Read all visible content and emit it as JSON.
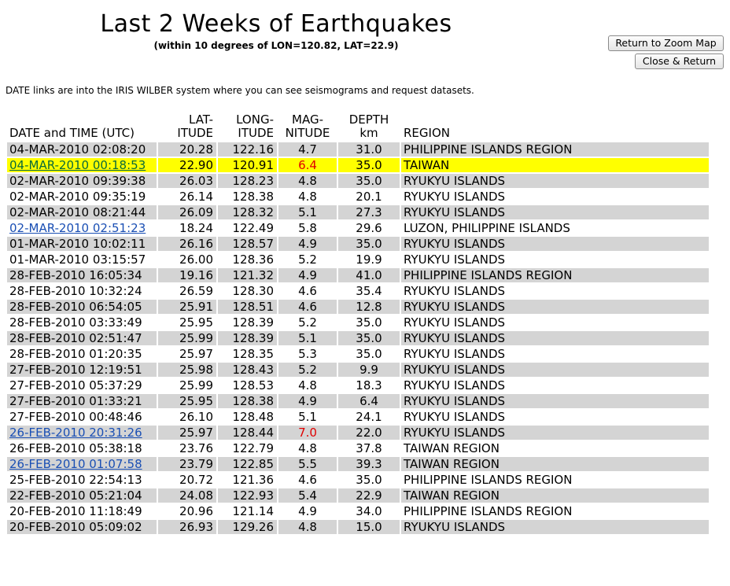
{
  "header": {
    "title": "Last 2 Weeks of Earthquakes",
    "subtitle": "(within 10 degrees of LON=120.82, LAT=22.9)"
  },
  "buttons": {
    "zoom_label": "Return to Zoom Map",
    "close_label": "Close & Return"
  },
  "note": "DATE links are into the IRIS WILBER system where you can see seismograms and request datasets.",
  "columns": {
    "date": "DATE and TIME (UTC)",
    "lat": [
      "LAT-",
      "ITUDE"
    ],
    "lon": [
      "LONG-",
      "ITUDE"
    ],
    "mag": [
      "MAG-",
      "NITUDE"
    ],
    "depth": [
      "DEPTH",
      "km"
    ],
    "region": "REGION"
  },
  "highlight_color": "#ffff00",
  "alert_color": "#e00000",
  "rows": [
    {
      "date": "04-MAR-2010 02:08:20",
      "lat": "20.28",
      "lon": "122.16",
      "mag": "4.7",
      "depth": "31.0",
      "region": "PHILIPPINE ISLANDS REGION",
      "link": false,
      "highlight": false,
      "alert": false
    },
    {
      "date": "04-MAR-2010 00:18:53",
      "lat": "22.90",
      "lon": "120.91",
      "mag": "6.4",
      "depth": "35.0",
      "region": "TAIWAN",
      "link": true,
      "highlight": true,
      "alert": true
    },
    {
      "date": "02-MAR-2010 09:39:38",
      "lat": "26.03",
      "lon": "128.23",
      "mag": "4.8",
      "depth": "35.0",
      "region": "RYUKYU ISLANDS",
      "link": false,
      "highlight": false,
      "alert": false
    },
    {
      "date": "02-MAR-2010 09:35:19",
      "lat": "26.14",
      "lon": "128.38",
      "mag": "4.8",
      "depth": "20.1",
      "region": "RYUKYU ISLANDS",
      "link": false,
      "highlight": false,
      "alert": false
    },
    {
      "date": "02-MAR-2010 08:21:44",
      "lat": "26.09",
      "lon": "128.32",
      "mag": "5.1",
      "depth": "27.3",
      "region": "RYUKYU ISLANDS",
      "link": false,
      "highlight": false,
      "alert": false
    },
    {
      "date": "02-MAR-2010 02:51:23",
      "lat": "18.24",
      "lon": "122.49",
      "mag": "5.8",
      "depth": "29.6",
      "region": "LUZON, PHILIPPINE ISLANDS",
      "link": true,
      "highlight": false,
      "alert": false
    },
    {
      "date": "01-MAR-2010 10:02:11",
      "lat": "26.16",
      "lon": "128.57",
      "mag": "4.9",
      "depth": "35.0",
      "region": "RYUKYU ISLANDS",
      "link": false,
      "highlight": false,
      "alert": false
    },
    {
      "date": "01-MAR-2010 03:15:57",
      "lat": "26.00",
      "lon": "128.36",
      "mag": "5.2",
      "depth": "19.9",
      "region": "RYUKYU ISLANDS",
      "link": false,
      "highlight": false,
      "alert": false
    },
    {
      "date": "28-FEB-2010 16:05:34",
      "lat": "19.16",
      "lon": "121.32",
      "mag": "4.9",
      "depth": "41.0",
      "region": "PHILIPPINE ISLANDS REGION",
      "link": false,
      "highlight": false,
      "alert": false
    },
    {
      "date": "28-FEB-2010 10:32:24",
      "lat": "26.59",
      "lon": "128.30",
      "mag": "4.6",
      "depth": "35.4",
      "region": "RYUKYU ISLANDS",
      "link": false,
      "highlight": false,
      "alert": false
    },
    {
      "date": "28-FEB-2010 06:54:05",
      "lat": "25.91",
      "lon": "128.51",
      "mag": "4.6",
      "depth": "12.8",
      "region": "RYUKYU ISLANDS",
      "link": false,
      "highlight": false,
      "alert": false
    },
    {
      "date": "28-FEB-2010 03:33:49",
      "lat": "25.95",
      "lon": "128.39",
      "mag": "5.2",
      "depth": "35.0",
      "region": "RYUKYU ISLANDS",
      "link": false,
      "highlight": false,
      "alert": false
    },
    {
      "date": "28-FEB-2010 02:51:47",
      "lat": "25.99",
      "lon": "128.39",
      "mag": "5.1",
      "depth": "35.0",
      "region": "RYUKYU ISLANDS",
      "link": false,
      "highlight": false,
      "alert": false
    },
    {
      "date": "28-FEB-2010 01:20:35",
      "lat": "25.97",
      "lon": "128.35",
      "mag": "5.3",
      "depth": "35.0",
      "region": "RYUKYU ISLANDS",
      "link": false,
      "highlight": false,
      "alert": false
    },
    {
      "date": "27-FEB-2010 12:19:51",
      "lat": "25.98",
      "lon": "128.43",
      "mag": "5.2",
      "depth": "9.9",
      "region": "RYUKYU ISLANDS",
      "link": false,
      "highlight": false,
      "alert": false
    },
    {
      "date": "27-FEB-2010 05:37:29",
      "lat": "25.99",
      "lon": "128.53",
      "mag": "4.8",
      "depth": "18.3",
      "region": "RYUKYU ISLANDS",
      "link": false,
      "highlight": false,
      "alert": false
    },
    {
      "date": "27-FEB-2010 01:33:21",
      "lat": "25.95",
      "lon": "128.38",
      "mag": "4.9",
      "depth": "6.4",
      "region": "RYUKYU ISLANDS",
      "link": false,
      "highlight": false,
      "alert": false
    },
    {
      "date": "27-FEB-2010 00:48:46",
      "lat": "26.10",
      "lon": "128.48",
      "mag": "5.1",
      "depth": "24.1",
      "region": "RYUKYU ISLANDS",
      "link": false,
      "highlight": false,
      "alert": false
    },
    {
      "date": "26-FEB-2010 20:31:26",
      "lat": "25.97",
      "lon": "128.44",
      "mag": "7.0",
      "depth": "22.0",
      "region": "RYUKYU ISLANDS",
      "link": true,
      "highlight": false,
      "alert": true
    },
    {
      "date": "26-FEB-2010 05:38:18",
      "lat": "23.76",
      "lon": "122.79",
      "mag": "4.8",
      "depth": "37.8",
      "region": "TAIWAN REGION",
      "link": false,
      "highlight": false,
      "alert": false
    },
    {
      "date": "26-FEB-2010 01:07:58",
      "lat": "23.79",
      "lon": "122.85",
      "mag": "5.5",
      "depth": "39.3",
      "region": "TAIWAN REGION",
      "link": true,
      "highlight": false,
      "alert": false
    },
    {
      "date": "25-FEB-2010 22:54:13",
      "lat": "20.72",
      "lon": "121.36",
      "mag": "4.6",
      "depth": "35.0",
      "region": "PHILIPPINE ISLANDS REGION",
      "link": false,
      "highlight": false,
      "alert": false
    },
    {
      "date": "22-FEB-2010 05:21:04",
      "lat": "24.08",
      "lon": "122.93",
      "mag": "5.4",
      "depth": "22.9",
      "region": "TAIWAN REGION",
      "link": false,
      "highlight": false,
      "alert": false
    },
    {
      "date": "20-FEB-2010 11:18:49",
      "lat": "20.96",
      "lon": "121.14",
      "mag": "4.9",
      "depth": "34.0",
      "region": "PHILIPPINE ISLANDS REGION",
      "link": false,
      "highlight": false,
      "alert": false
    },
    {
      "date": "20-FEB-2010 05:09:02",
      "lat": "26.93",
      "lon": "129.26",
      "mag": "4.8",
      "depth": "15.0",
      "region": "RYUKYU ISLANDS",
      "link": false,
      "highlight": false,
      "alert": false
    }
  ]
}
